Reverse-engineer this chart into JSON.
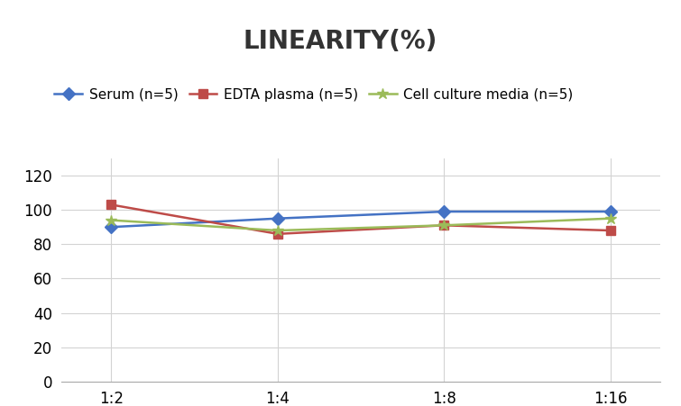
{
  "title": "LINEARITY(%)",
  "title_fontsize": 20,
  "title_fontweight": "bold",
  "x_labels": [
    "1:2",
    "1:4",
    "1:8",
    "1:16"
  ],
  "x_positions": [
    0,
    1,
    2,
    3
  ],
  "series": [
    {
      "label": "Serum (n=5)",
      "values": [
        90,
        95,
        99,
        99
      ],
      "color": "#4472C4",
      "marker": "D",
      "markersize": 7,
      "linewidth": 1.8
    },
    {
      "label": "EDTA plasma (n=5)",
      "values": [
        103,
        86,
        91,
        88
      ],
      "color": "#BE4B48",
      "marker": "s",
      "markersize": 7,
      "linewidth": 1.8
    },
    {
      "label": "Cell culture media (n=5)",
      "values": [
        94,
        88,
        91,
        95
      ],
      "color": "#9BBB59",
      "marker": "*",
      "markersize": 9,
      "linewidth": 1.8
    }
  ],
  "ylim": [
    0,
    130
  ],
  "yticks": [
    0,
    20,
    40,
    60,
    80,
    100,
    120
  ],
  "grid_color": "#D3D3D3",
  "background_color": "#FFFFFF",
  "legend_fontsize": 11,
  "axis_fontsize": 12
}
